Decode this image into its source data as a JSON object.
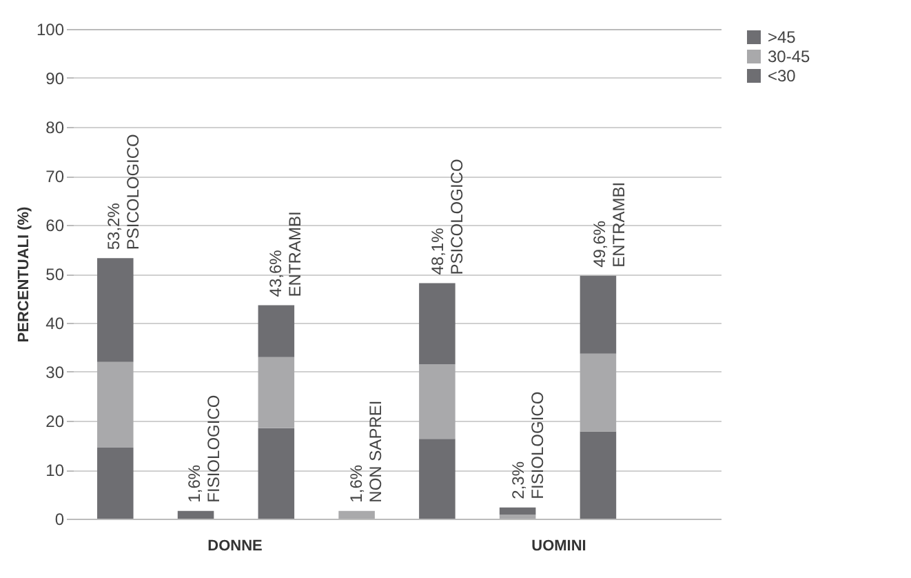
{
  "chart_data": {
    "type": "bar",
    "stacked": true,
    "ylabel": "PERCENTUALI (%)",
    "categories": [
      "PSICOLOGICO",
      "FISIOLOGICO",
      "ENTRAMBI",
      "NON SAPREI",
      "PSICOLOGICO",
      "FISIOLOGICO",
      "ENTRAMBI",
      null
    ],
    "series": [
      {
        "name": "<30",
        "color": "#6e6e72",
        "values": [
          14.5,
          1.6,
          18.5,
          null,
          16.3,
          null,
          17.8,
          null
        ]
      },
      {
        "name": "30-45",
        "color": "#a9a9ab",
        "values": [
          17.5,
          null,
          14.5,
          1.6,
          15.2,
          0.8,
          15.9,
          null
        ]
      },
      {
        "name": ">45",
        "color": "#6e6e72",
        "values": [
          21.2,
          null,
          10.6,
          null,
          16.6,
          1.5,
          15.9,
          null
        ]
      }
    ],
    "totals": [
      "53,2%",
      "1,6%",
      "43,6%",
      "1,6%",
      "48,1%",
      "2,3%",
      "49,6%",
      null
    ],
    "annotations": [
      "DONNE",
      "UOMINI"
    ],
    "ylim": [
      0,
      100
    ],
    "yticks": [
      0,
      10,
      20,
      30,
      40,
      50,
      60,
      70,
      80,
      90,
      100
    ],
    "grid": "y",
    "legend": "right"
  }
}
